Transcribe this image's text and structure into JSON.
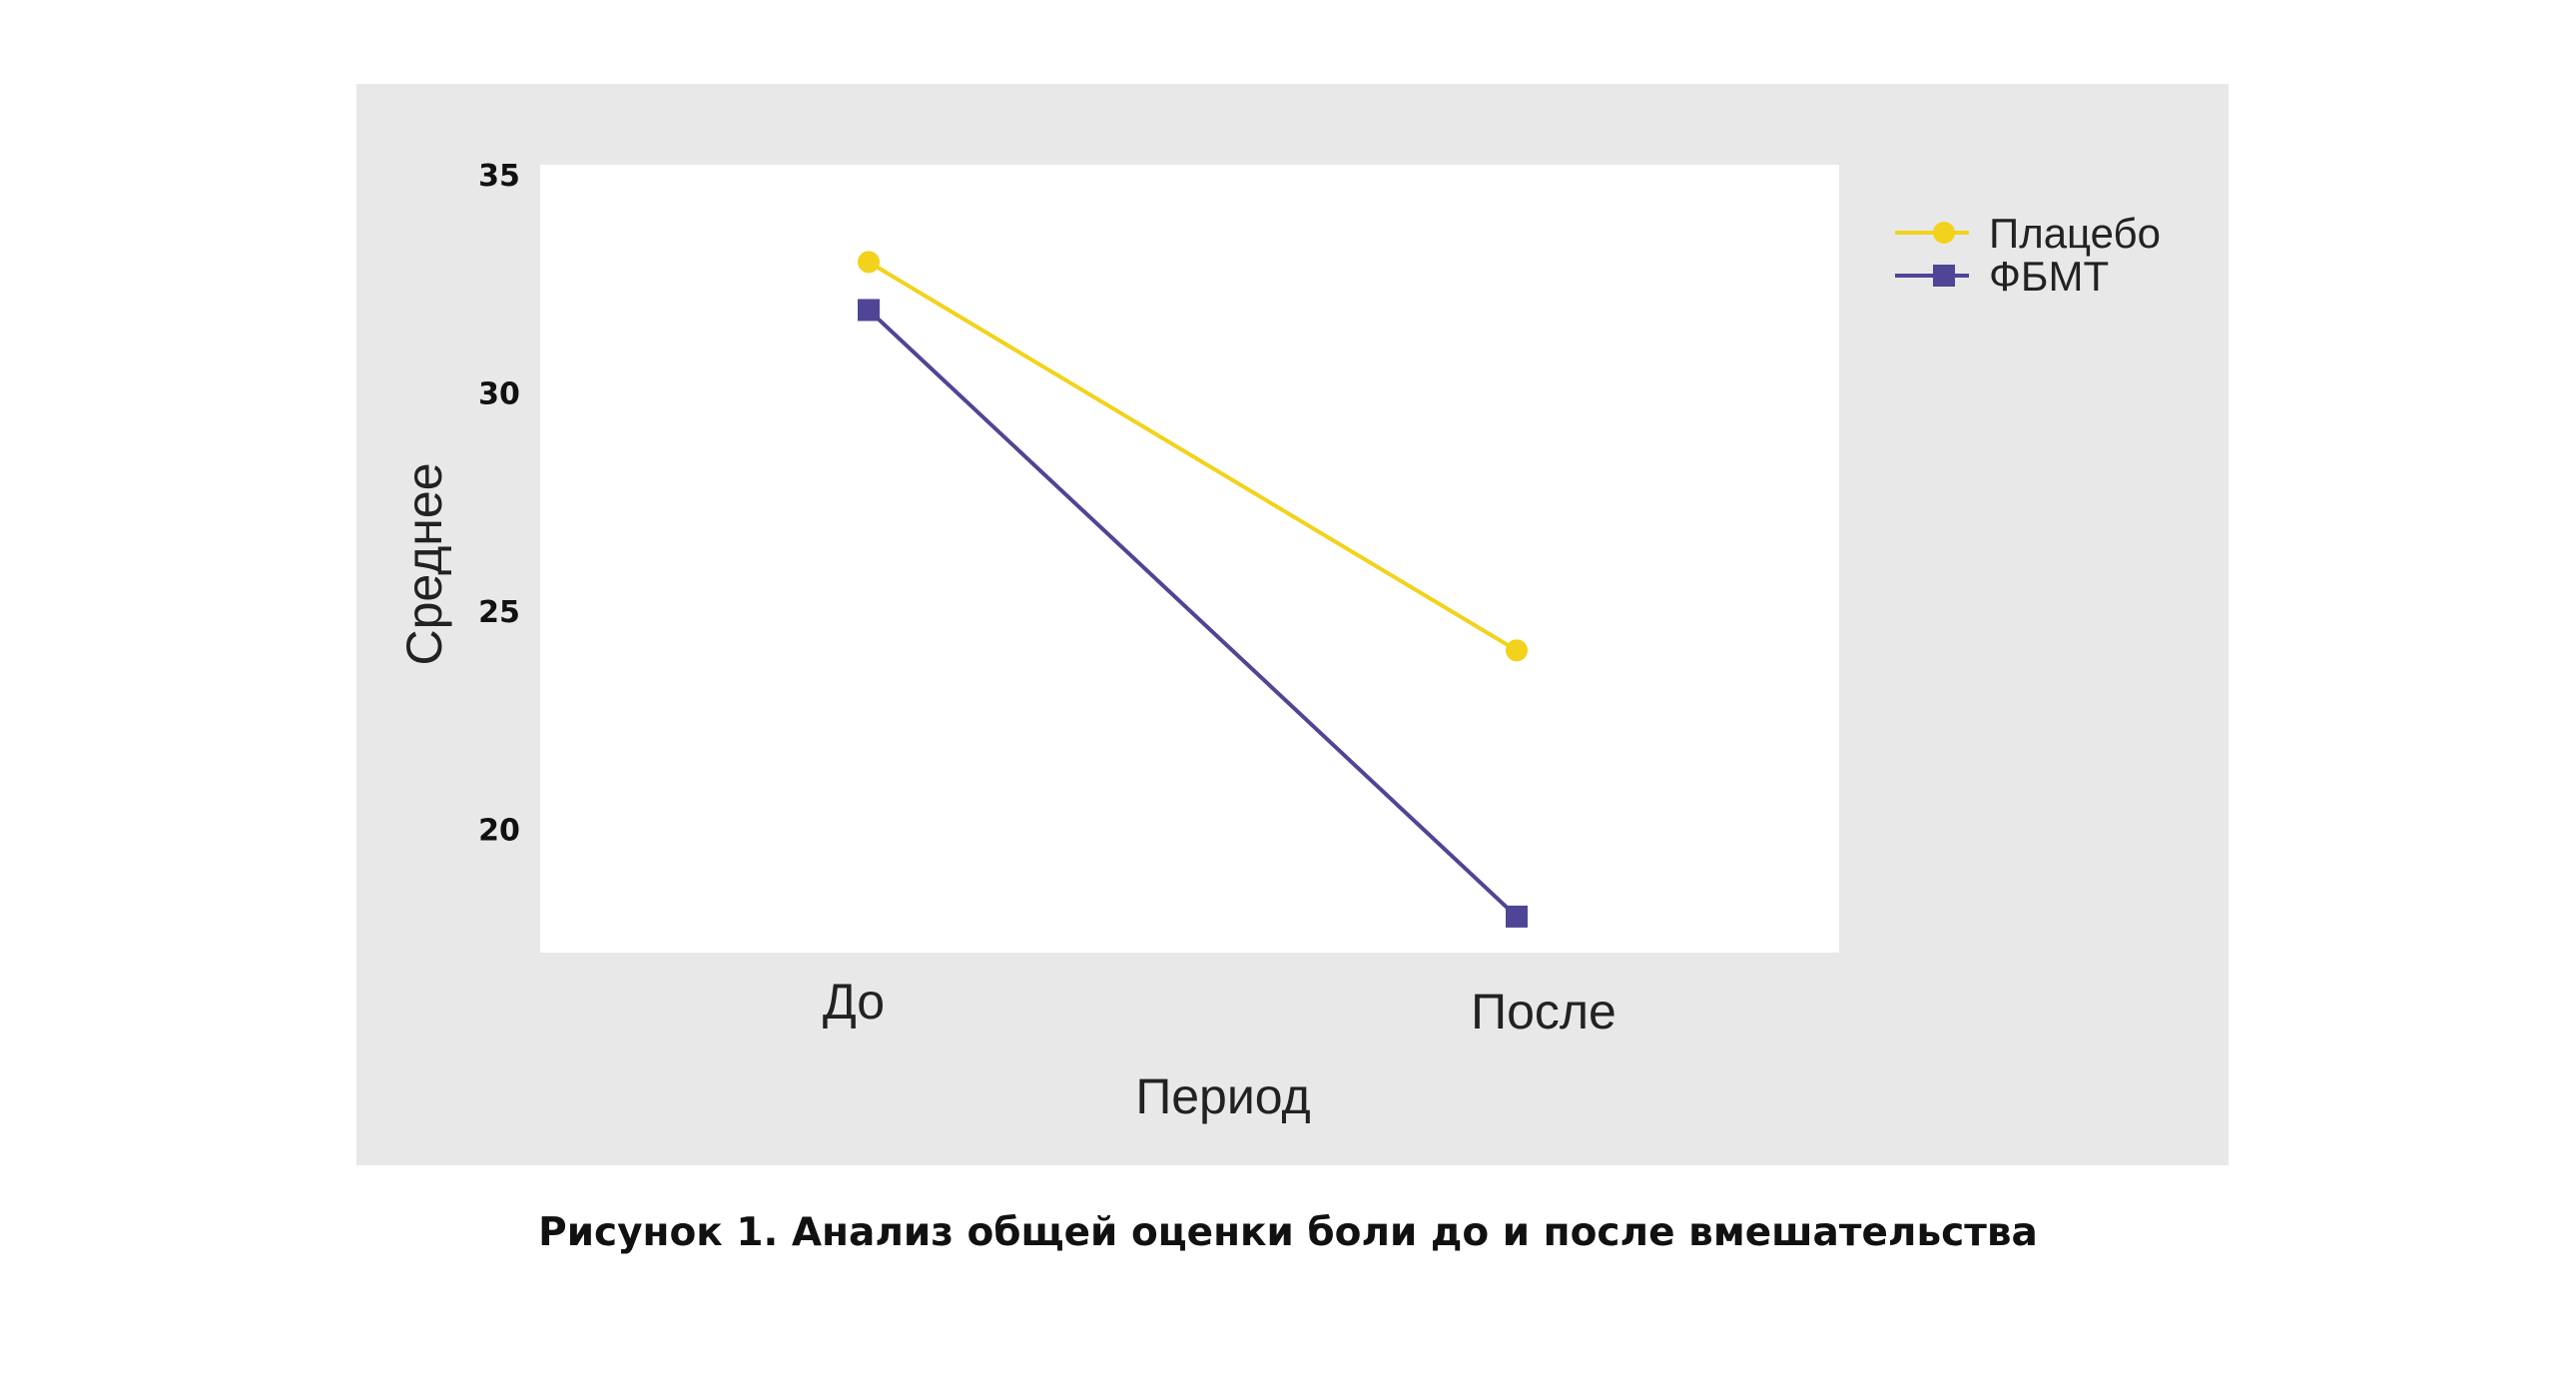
{
  "chart_data": {
    "type": "line",
    "categories": [
      "До",
      "После"
    ],
    "series": [
      {
        "name": "Плацебо",
        "values": [
          33.0,
          24.1
        ],
        "color": "#f2d21b",
        "marker": "circle"
      },
      {
        "name": "ФБМТ",
        "values": [
          31.9,
          18.0
        ],
        "color": "#4f4596",
        "marker": "square"
      }
    ],
    "xlabel": "Период",
    "ylabel": "Среднее",
    "ylim": [
      17,
      35
    ],
    "yticks": [
      20,
      25,
      30,
      35
    ],
    "grid": false,
    "legend_position": "top-right",
    "colors": {
      "figure_background": "#e8e8e8",
      "plot_background": "#ffffff"
    }
  },
  "caption": "Рисунок 1. Анализ общей оценки боли до и после вмешательства"
}
